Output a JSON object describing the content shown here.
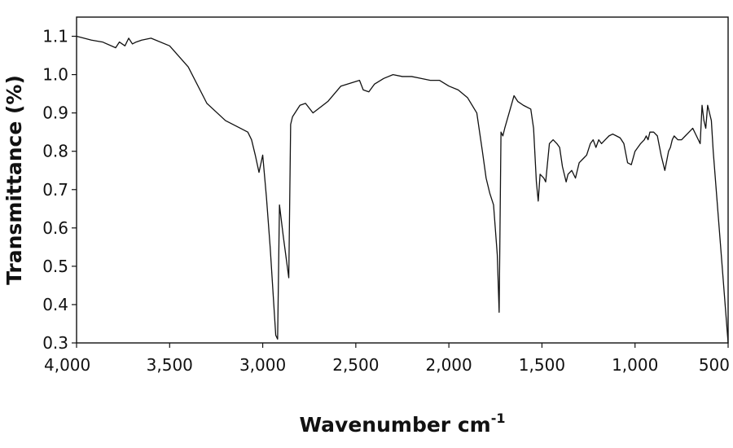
{
  "chart_data": {
    "type": "line",
    "xlabel": "Wavenumber cm",
    "xlabel_sup": "-1",
    "ylabel": "Transmittance (%)",
    "xlim": [
      4000,
      500
    ],
    "ylim": [
      0.3,
      1.15
    ],
    "x_reversed": true,
    "x_ticks": [
      4000,
      3500,
      3000,
      2500,
      2000,
      1500,
      1000,
      500
    ],
    "x_tick_labels": [
      "4,000",
      "3,500",
      "3,000",
      "2,500",
      "2,000",
      "1,500",
      "1,000",
      "500"
    ],
    "y_ticks": [
      0.3,
      0.4,
      0.5,
      0.6,
      0.7,
      0.8,
      0.9,
      1.0,
      1.1
    ],
    "y_tick_labels": [
      "0.3",
      "0.4",
      "0.5",
      "0.6",
      "0.7",
      "0.8",
      "0.9",
      "1.0",
      "1.1"
    ],
    "grid": false,
    "series": [
      {
        "color": "#111111",
        "x": [
          4000,
          3920,
          3860,
          3790,
          3770,
          3740,
          3720,
          3700,
          3680,
          3650,
          3600,
          3500,
          3400,
          3300,
          3200,
          3120,
          3080,
          3060,
          3040,
          3020,
          3000,
          2980,
          2960,
          2930,
          2920,
          2910,
          2890,
          2860,
          2850,
          2840,
          2800,
          2770,
          2730,
          2650,
          2580,
          2480,
          2460,
          2430,
          2400,
          2350,
          2300,
          2250,
          2200,
          2150,
          2100,
          2050,
          2000,
          1950,
          1900,
          1850,
          1820,
          1800,
          1780,
          1760,
          1740,
          1730,
          1720,
          1710,
          1700,
          1650,
          1630,
          1600,
          1560,
          1545,
          1530,
          1520,
          1510,
          1490,
          1480,
          1460,
          1440,
          1420,
          1405,
          1390,
          1370,
          1360,
          1340,
          1320,
          1300,
          1280,
          1260,
          1240,
          1225,
          1210,
          1195,
          1180,
          1160,
          1140,
          1120,
          1100,
          1080,
          1060,
          1040,
          1020,
          1000,
          985,
          970,
          950,
          940,
          930,
          920,
          910,
          900,
          880,
          860,
          840,
          820,
          810,
          800,
          790,
          770,
          750,
          730,
          710,
          690,
          670,
          650,
          640,
          630,
          620,
          610,
          600,
          590,
          580,
          500
        ],
        "y": [
          1.1,
          1.09,
          1.085,
          1.07,
          1.085,
          1.075,
          1.095,
          1.08,
          1.085,
          1.09,
          1.095,
          1.075,
          1.02,
          0.925,
          0.88,
          0.86,
          0.85,
          0.83,
          0.79,
          0.745,
          0.79,
          0.68,
          0.55,
          0.32,
          0.31,
          0.66,
          0.58,
          0.47,
          0.87,
          0.89,
          0.92,
          0.925,
          0.9,
          0.93,
          0.97,
          0.985,
          0.96,
          0.955,
          0.975,
          0.99,
          1.0,
          0.995,
          0.995,
          0.99,
          0.985,
          0.985,
          0.97,
          0.96,
          0.94,
          0.9,
          0.8,
          0.73,
          0.69,
          0.66,
          0.53,
          0.38,
          0.85,
          0.84,
          0.86,
          0.945,
          0.93,
          0.92,
          0.91,
          0.86,
          0.72,
          0.67,
          0.74,
          0.73,
          0.72,
          0.82,
          0.83,
          0.82,
          0.81,
          0.76,
          0.72,
          0.74,
          0.75,
          0.73,
          0.77,
          0.78,
          0.79,
          0.82,
          0.83,
          0.81,
          0.83,
          0.82,
          0.83,
          0.84,
          0.845,
          0.84,
          0.835,
          0.82,
          0.77,
          0.765,
          0.8,
          0.81,
          0.82,
          0.83,
          0.84,
          0.83,
          0.85,
          0.85,
          0.85,
          0.84,
          0.79,
          0.75,
          0.8,
          0.81,
          0.83,
          0.84,
          0.83,
          0.83,
          0.84,
          0.85,
          0.86,
          0.84,
          0.82,
          0.92,
          0.88,
          0.86,
          0.92,
          0.9,
          0.88,
          0.8,
          0.3
        ]
      }
    ]
  }
}
